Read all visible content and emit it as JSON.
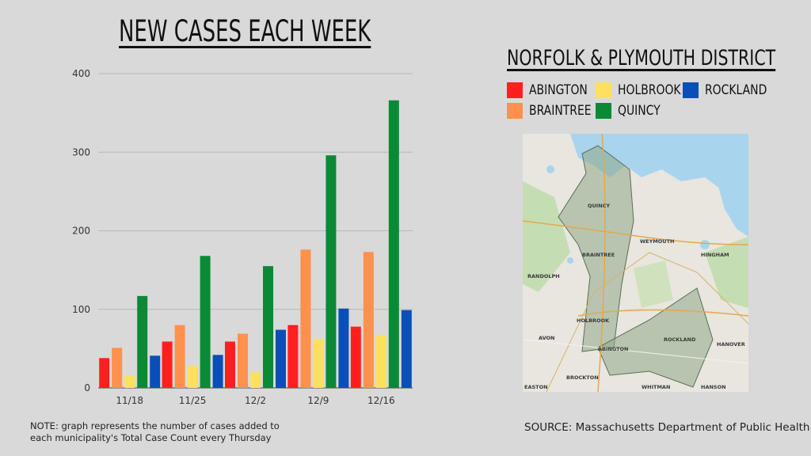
{
  "chart_title": "NEW CASES EACH WEEK",
  "district_title": "NORFOLK & PLYMOUTH DISTRICT",
  "note": "NOTE: graph represents the number of cases added to each municipality's Total Case Count every Thursday",
  "source": "SOURCE: Massachusetts Department of Public Health",
  "legend": [
    {
      "label": "ABINGTON",
      "color": "#ff1f1f"
    },
    {
      "label": "HOLBROOK",
      "color": "#ffe05c"
    },
    {
      "label": "ROCKLAND",
      "color": "#0a4fb8"
    },
    {
      "label": "BRAINTREE",
      "color": "#ff914d"
    },
    {
      "label": "QUINCY",
      "color": "#0a8a35"
    }
  ],
  "map_labels": [
    "QUINCY",
    "BRAINTREE",
    "WEYMOUTH",
    "HINGHAM",
    "RANDOLPH",
    "HOLBROOK",
    "AVON",
    "ABINGTON",
    "ROCKLAND",
    "HANOVER",
    "BROCKTON",
    "WHITMAN",
    "HANSON",
    "EASTON"
  ],
  "chart_data": {
    "type": "bar",
    "title": "NEW CASES EACH WEEK",
    "categories": [
      "11/18",
      "11/25",
      "12/2",
      "12/9",
      "12/16"
    ],
    "series": [
      {
        "name": "ABINGTON",
        "color": "#ff1f1f",
        "values": [
          38,
          59,
          59,
          80,
          78
        ]
      },
      {
        "name": "BRAINTREE",
        "color": "#ff914d",
        "values": [
          51,
          80,
          69,
          176,
          173
        ]
      },
      {
        "name": "HOLBROOK",
        "color": "#ffe05c",
        "values": [
          15,
          28,
          20,
          62,
          67
        ]
      },
      {
        "name": "QUINCY",
        "color": "#0a8a35",
        "values": [
          117,
          168,
          155,
          296,
          366
        ]
      },
      {
        "name": "ROCKLAND",
        "color": "#0a4fb8",
        "values": [
          41,
          42,
          74,
          101,
          99
        ]
      }
    ],
    "xlabel": "",
    "ylabel": "",
    "ylim": [
      0,
      400
    ],
    "yticks": [
      0,
      100,
      200,
      300,
      400
    ],
    "grid": true
  }
}
